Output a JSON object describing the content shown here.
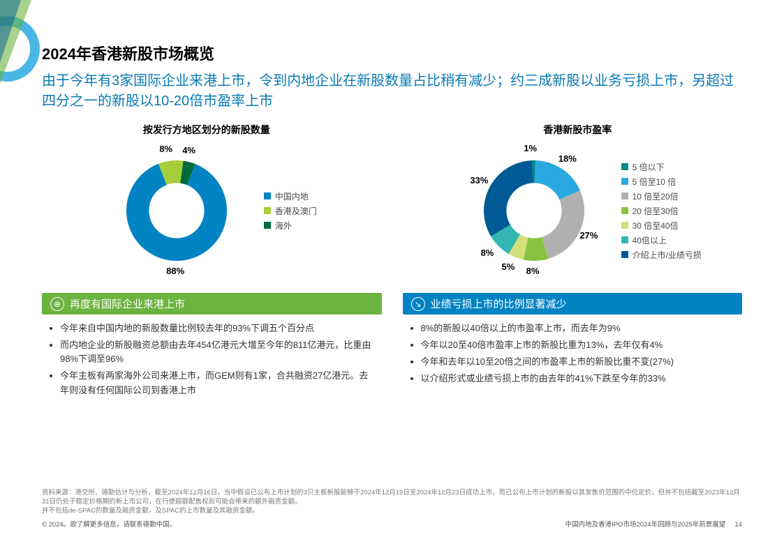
{
  "title": "2024年香港新股市场概览",
  "subtitle": "由于今年有3家国际企业来港上市，令到内地企业在新股数量占比稍有减少；约三成新股以业务亏损上市，另超过四分之一的新股以10-20倍市盈率上市",
  "chart_left": {
    "title": "按发行方地区划分的新股数量",
    "type": "donut",
    "inner_radius_ratio": 0.55,
    "background_color": "#ffffff",
    "label_fontsize": 13,
    "slices": [
      {
        "label": "中国内地",
        "value": 88,
        "pct_text": "88%",
        "color": "#0083c3"
      },
      {
        "label": "香港及澳门",
        "value": 8,
        "pct_text": "8%",
        "color": "#a6ce39"
      },
      {
        "label": "海外",
        "value": 4,
        "pct_text": "4%",
        "color": "#006a3d"
      }
    ]
  },
  "chart_right": {
    "title": "香港新股市盈率",
    "type": "donut",
    "inner_radius_ratio": 0.55,
    "background_color": "#ffffff",
    "label_fontsize": 13,
    "slices": [
      {
        "label": "5 倍以下",
        "value": 1,
        "pct_text": "1%",
        "color": "#008a8a"
      },
      {
        "label": "5 倍至10 倍",
        "value": 18,
        "pct_text": "18%",
        "color": "#2aa9e0"
      },
      {
        "label": "10 倍至20倍",
        "value": 27,
        "pct_text": "27%",
        "color": "#b0b0b0"
      },
      {
        "label": "20 倍至30倍",
        "value": 8,
        "pct_text": "8%",
        "color": "#86c440"
      },
      {
        "label": "30 倍至40倍",
        "value": 5,
        "pct_text": "5%",
        "color": "#d4df7c"
      },
      {
        "label": "40倍以上",
        "value": 8,
        "pct_text": "8%",
        "color": "#33b6b1"
      },
      {
        "label": "介绍上市/业绩亏损",
        "value": 33,
        "pct_text": "33%",
        "color": "#005a96"
      }
    ]
  },
  "callout_left": {
    "header": "再度有国际企业来港上市",
    "header_bg": "#6cb33f",
    "icon_glyph": "⊕",
    "bullets": [
      "今年来自中国内地的新股数量比例较去年的93%下调五个百分点",
      "而内地企业的新股融资总额由去年454亿港元大增至今年的811亿港元，比重由98%下调至96%",
      "今年主板有两家海外公司来港上市，而GEM则有1家，合共融资27亿港元。去年则没有任何国际公司到香港上市"
    ]
  },
  "callout_right": {
    "header": "业绩亏损上市的比例显著减少",
    "header_bg": "#0083c3",
    "icon_glyph": "↘",
    "bullets": [
      "8%的新股以40倍以上的市盈率上市，而去年为9%",
      "今年以20至40倍市盈率上市的新股比重为13%，去年仅有4%",
      "今年和去年以10至20倍之间的市盈率上市的新股比重不变(27%)",
      "以介绍形式或业绩亏损上市的由去年的41%下跌至今年的33%"
    ]
  },
  "footer": {
    "source_lines": [
      "资料来源：港交所、德勤估计与分析，截至2024年12月16日，当中假设已公布上市计划的3只主板新股能够于2024年12月19日至2024年12月23日成功上市，而已公布上市计划的新股以其发售价范围的中位定价，但并不包括截至2023年12月31日仍处于稳定价格期的新上市公司，在行使超额配售权后可能会带来的额外融资金额。",
      "并不包括de-SPAC的数量及融资金额，及SPAC的上市数量及其融资金额。"
    ],
    "copyright": "© 2024。欲了解更多信息，请联系德勤中国。",
    "doc_title": "中国内地及香港IPO市场2024年回顾与2025年前景展望",
    "page_number": "14"
  }
}
